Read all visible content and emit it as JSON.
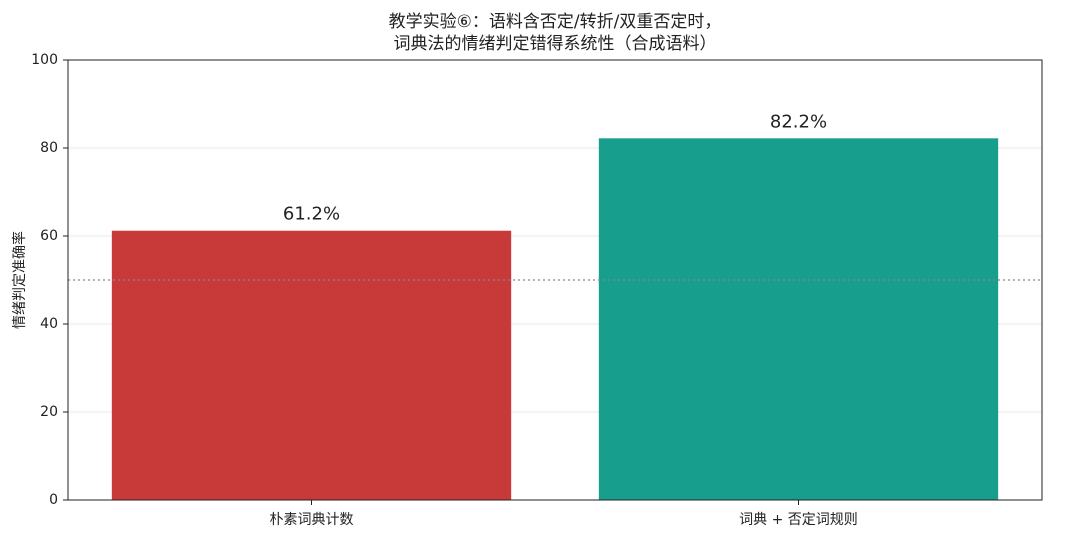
{
  "chart_data": {
    "type": "bar",
    "title": [
      "教学实验⑥：语料含否定/转折/双重否定时，",
      "词典法的情绪判定错得系统性（合成语料）"
    ],
    "ylabel": "情绪判定准确率",
    "categories": [
      "朴素词典计数",
      "词典 + 否定词规则"
    ],
    "values": [
      61.2,
      82.2
    ],
    "value_labels": [
      "61.2%",
      "82.2%"
    ],
    "colors": [
      "#c83a3a",
      "#179e8c"
    ],
    "ylim": [
      0,
      100
    ],
    "yticks": [
      0,
      20,
      40,
      60,
      80,
      100
    ],
    "grid": true,
    "reference_line": 50
  }
}
